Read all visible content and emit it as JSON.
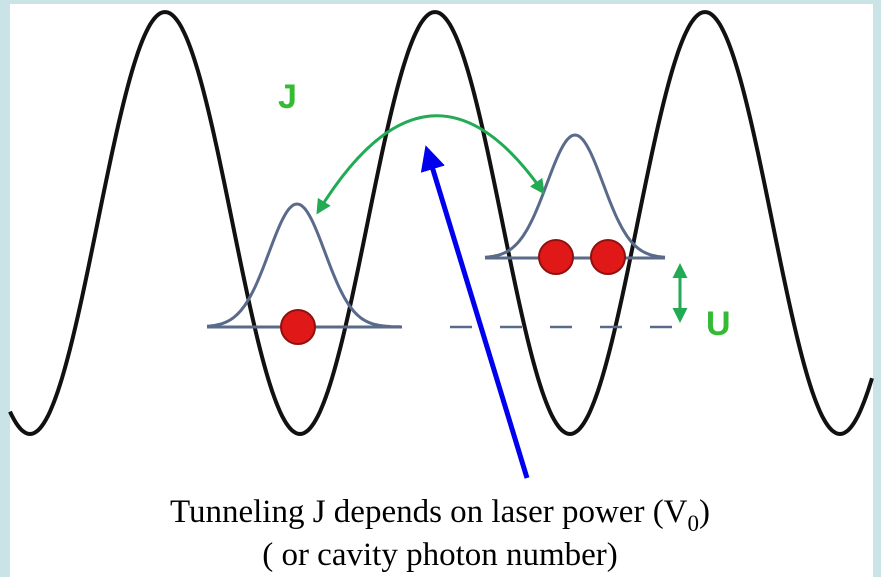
{
  "labels": {
    "J": "J",
    "U": "U"
  },
  "caption": {
    "line1_prefix": "Tunneling J depends on laser power (V",
    "subscript": "0",
    "line1_suffix": ")",
    "line2": "( or cavity photon number)"
  }
}
